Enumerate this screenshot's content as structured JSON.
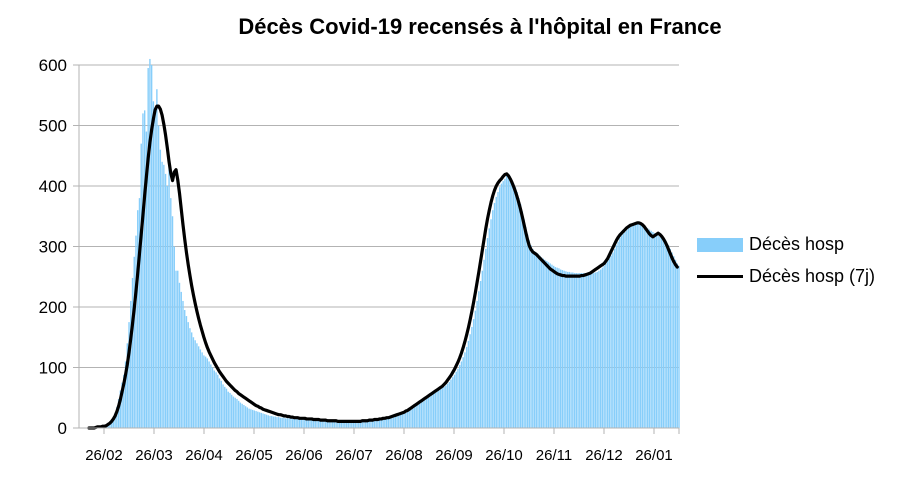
{
  "chart_data": {
    "type": "bar",
    "title": "Décès Covid-19 recensés à l'hôpital en France",
    "xlabel": "",
    "ylabel": "",
    "ylim": [
      0,
      600
    ],
    "ytick_labels": [
      "0",
      "100",
      "200",
      "300",
      "400",
      "500",
      "600"
    ],
    "xtick_labels": [
      "26/02",
      "26/03",
      "26/04",
      "26/05",
      "26/06",
      "26/07",
      "26/08",
      "26/09",
      "26/10",
      "26/11",
      "26/12",
      "26/01"
    ],
    "grid": true,
    "legend_position": "right",
    "colors": {
      "bars": "#87cefa",
      "line": "#000000",
      "grid": "#b3b3b3"
    },
    "series": [
      {
        "name": "Décès hosp",
        "type": "bar",
        "start_date": "2020-02-26",
        "values": [
          0,
          0,
          0,
          0,
          2,
          3,
          3,
          3,
          4,
          4,
          5,
          8,
          10,
          14,
          18,
          25,
          35,
          48,
          62,
          75,
          88,
          110,
          140,
          175,
          210,
          248,
          283,
          318,
          360,
          380,
          470,
          520,
          525,
          490,
          595,
          610,
          600,
          540,
          520,
          560,
          500,
          460,
          440,
          435,
          420,
          400,
          440,
          380,
          350,
          300,
          260,
          260,
          240,
          225,
          210,
          195,
          185,
          175,
          165,
          158,
          150,
          145,
          140,
          135,
          130,
          125,
          120,
          118,
          115,
          110,
          105,
          100,
          95,
          92,
          88,
          82,
          78,
          72,
          68,
          65,
          60,
          58,
          55,
          52,
          50,
          48,
          45,
          42,
          40,
          38,
          36,
          34,
          32,
          31,
          30,
          29,
          28,
          27,
          26,
          25,
          24,
          23,
          22,
          21,
          20,
          20,
          19,
          19,
          18,
          18,
          17,
          17,
          17,
          16,
          16,
          16,
          16,
          15,
          15,
          15,
          15,
          14,
          14,
          14,
          14,
          13,
          13,
          13,
          13,
          12,
          12,
          12,
          12,
          12,
          11,
          11,
          11,
          11,
          11,
          11,
          11,
          11,
          10,
          10,
          10,
          10,
          10,
          10,
          10,
          10,
          10,
          10,
          10,
          11,
          11,
          11,
          11,
          11,
          12,
          12,
          12,
          12,
          13,
          13,
          13,
          14,
          14,
          14,
          15,
          15,
          16,
          16,
          17,
          17,
          18,
          18,
          19,
          20,
          21,
          22,
          23,
          24,
          25,
          27,
          28,
          30,
          32,
          34,
          36,
          38,
          40,
          42,
          44,
          46,
          48,
          50,
          52,
          54,
          56,
          58,
          60,
          62,
          64,
          66,
          68,
          70,
          73,
          76,
          80,
          84,
          88,
          93,
          98,
          104,
          110,
          117,
          125,
          134,
          144,
          155,
          167,
          180,
          194,
          210,
          226,
          243,
          260,
          278,
          296,
          314,
          330,
          345,
          360,
          372,
          382,
          390,
          398,
          404,
          408,
          412,
          418,
          420,
          416,
          410,
          404,
          398,
          390,
          380,
          370,
          358,
          345,
          332,
          320,
          310,
          302,
          296,
          292,
          290,
          288,
          285,
          282,
          280,
          278,
          276,
          274,
          272,
          270,
          268,
          266,
          265,
          264,
          262,
          261,
          260,
          259,
          258,
          258,
          257,
          257,
          256,
          256,
          256,
          256,
          256,
          256,
          256,
          256,
          256,
          256,
          256,
          256,
          257,
          258,
          260,
          262,
          265,
          268,
          272,
          276,
          280,
          285,
          290,
          296,
          302,
          308,
          314,
          318,
          321,
          324,
          327,
          330,
          332,
          334,
          336,
          337,
          338,
          338,
          337,
          336,
          334,
          332,
          330,
          328,
          326,
          324,
          322,
          320,
          318,
          316,
          314,
          312,
          310,
          306,
          302,
          296,
          290,
          284,
          278,
          272,
          268
        ]
      },
      {
        "name": "Décès hosp (7j)",
        "type": "line",
        "start_date": "2020-02-26",
        "values": [
          0,
          0,
          0,
          0,
          1,
          2,
          2,
          2,
          3,
          3,
          4,
          6,
          8,
          11,
          15,
          20,
          27,
          36,
          47,
          60,
          73,
          88,
          105,
          125,
          148,
          172,
          198,
          226,
          256,
          288,
          320,
          352,
          385,
          416,
          446,
          472,
          493,
          511,
          526,
          532,
          532,
          527,
          517,
          502,
          484,
          463,
          440,
          421,
          409,
          423,
          427,
          410,
          388,
          362,
          336,
          312,
          290,
          270,
          252,
          235,
          220,
          206,
          193,
          181,
          170,
          160,
          150,
          141,
          133,
          126,
          120,
          114,
          108,
          103,
          98,
          93,
          89,
          85,
          81,
          77,
          74,
          71,
          68,
          65,
          62,
          60,
          57,
          55,
          53,
          51,
          49,
          47,
          45,
          43,
          41,
          39,
          37,
          36,
          34,
          33,
          31,
          30,
          29,
          28,
          27,
          26,
          25,
          24,
          23,
          22,
          22,
          21,
          20,
          20,
          19,
          19,
          18,
          18,
          17,
          17,
          17,
          16,
          16,
          16,
          16,
          15,
          15,
          15,
          15,
          14,
          14,
          14,
          14,
          13,
          13,
          13,
          13,
          12,
          12,
          12,
          12,
          12,
          12,
          11,
          11,
          11,
          11,
          11,
          11,
          11,
          11,
          11,
          11,
          11,
          11,
          11,
          11,
          12,
          12,
          12,
          12,
          13,
          13,
          13,
          14,
          14,
          14,
          15,
          15,
          16,
          16,
          17,
          17,
          18,
          19,
          20,
          21,
          22,
          23,
          24,
          25,
          26,
          28,
          29,
          31,
          33,
          35,
          37,
          39,
          41,
          43,
          45,
          47,
          49,
          51,
          53,
          55,
          57,
          59,
          61,
          63,
          65,
          67,
          69,
          72,
          75,
          79,
          83,
          87,
          92,
          97,
          103,
          109,
          116,
          124,
          133,
          143,
          154,
          166,
          179,
          193,
          208,
          224,
          241,
          258,
          276,
          294,
          312,
          330,
          346,
          360,
          373,
          384,
          393,
          400,
          405,
          409,
          412,
          416,
          419,
          420,
          417,
          412,
          406,
          399,
          391,
          382,
          372,
          361,
          349,
          336,
          323,
          311,
          301,
          295,
          291,
          289,
          287,
          284,
          281,
          278,
          275,
          272,
          269,
          266,
          263,
          261,
          259,
          257,
          255,
          254,
          253,
          252,
          252,
          251,
          251,
          251,
          251,
          251,
          251,
          251,
          251,
          251,
          252,
          252,
          253,
          254,
          255,
          256,
          258,
          260,
          262,
          264,
          266,
          268,
          270,
          272,
          276,
          280,
          286,
          292,
          298,
          304,
          310,
          315,
          319,
          322,
          325,
          328,
          331,
          333,
          335,
          336,
          337,
          338,
          339,
          339,
          338,
          336,
          333,
          329,
          325,
          321,
          318,
          316,
          318,
          320,
          322,
          320,
          317,
          313,
          308,
          302,
          295,
          288,
          281,
          275,
          270,
          266
        ]
      }
    ]
  }
}
